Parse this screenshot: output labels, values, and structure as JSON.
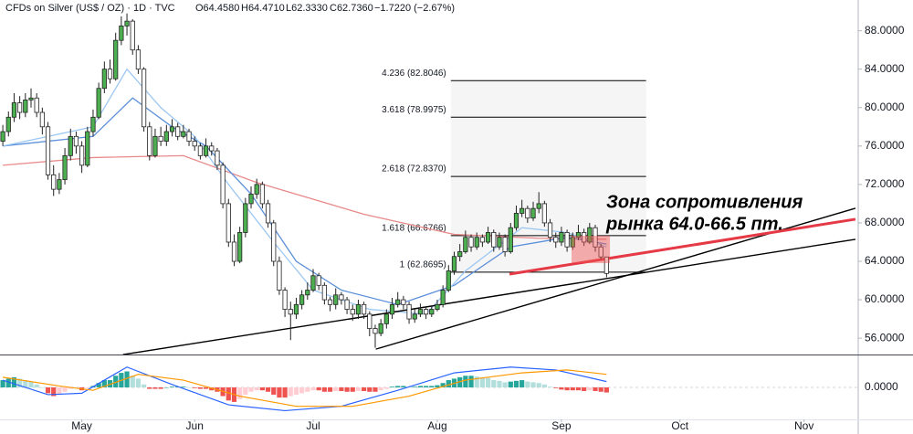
{
  "chart_data": {
    "type": "candlestick",
    "title": "CFDs on Silver (US$ / OZ) · 1D · TVC",
    "quote": [
      "O64.4580",
      "H64.4710",
      "L62.3330",
      "C62.7360",
      "−1.7220 (−2.67%)"
    ],
    "up_color": "#4caf50",
    "down_color": "#ffffff",
    "xlim": [
      -0.5,
      151.6
    ],
    "ylim": [
      54.3,
      91.2
    ],
    "grid": false,
    "xticks": [
      {
        "value": 14,
        "label": "May"
      },
      {
        "value": 34,
        "label": "Jun"
      },
      {
        "value": 55,
        "label": "Jul"
      },
      {
        "value": 77,
        "label": "Aug"
      },
      {
        "value": 99,
        "label": "Sep"
      },
      {
        "value": 120,
        "label": "Oct"
      },
      {
        "value": 142,
        "label": "Nov"
      }
    ],
    "yticks": [
      {
        "value": 56,
        "label": "56.0000"
      },
      {
        "value": 60,
        "label": "60.0000"
      },
      {
        "value": 64,
        "label": "64.0000"
      },
      {
        "value": 68,
        "label": "68.0000"
      },
      {
        "value": 72,
        "label": "72.0000"
      },
      {
        "value": 76,
        "label": "76.0000"
      },
      {
        "value": 80,
        "label": "80.0000"
      },
      {
        "value": 84,
        "label": "84.0000"
      },
      {
        "value": 88,
        "label": "88.0000"
      }
    ],
    "ohlc": [
      [
        76.5,
        78.2,
        76,
        77.5
      ],
      [
        77.5,
        79.6,
        77,
        79
      ],
      [
        79,
        81.5,
        78.5,
        80.5
      ],
      [
        80.5,
        81.2,
        78.8,
        79.5
      ],
      [
        79.5,
        81.5,
        79,
        80.8
      ],
      [
        80.8,
        82,
        80,
        81
      ],
      [
        81,
        81.5,
        79,
        79.5
      ],
      [
        79.5,
        80,
        77.2,
        78
      ],
      [
        78,
        78.5,
        72.5,
        73
      ],
      [
        73,
        74,
        70.8,
        71.5
      ],
      [
        71.5,
        73.2,
        71,
        72.5
      ],
      [
        72.5,
        75.8,
        72,
        75
      ],
      [
        75,
        77.8,
        74.5,
        77
      ],
      [
        77,
        77.5,
        75.2,
        76
      ],
      [
        76,
        76.5,
        73.2,
        74
      ],
      [
        74,
        78,
        73.8,
        77.5
      ],
      [
        77.5,
        79.8,
        77,
        79
      ],
      [
        79,
        82.6,
        78.8,
        82
      ],
      [
        82,
        84.8,
        81.5,
        84
      ],
      [
        84,
        85,
        82.5,
        83
      ],
      [
        83,
        87.8,
        82.8,
        87
      ],
      [
        87,
        89.5,
        86.5,
        88.5
      ],
      [
        88.5,
        89.8,
        87.5,
        89
      ],
      [
        89,
        89.2,
        85.5,
        86
      ],
      [
        86,
        86.5,
        83.5,
        84
      ],
      [
        84,
        84.2,
        77.5,
        78
      ],
      [
        78,
        78.5,
        74.5,
        75
      ],
      [
        75,
        77.8,
        74.8,
        77
      ],
      [
        77,
        78,
        76,
        76.5
      ],
      [
        76.5,
        78.2,
        76,
        77.5
      ],
      [
        77.5,
        78.8,
        77,
        78
      ],
      [
        78,
        78.4,
        76.6,
        77
      ],
      [
        77,
        78.2,
        76.8,
        77.5
      ],
      [
        77.5,
        77.8,
        76,
        76.5
      ],
      [
        76.5,
        77,
        75.5,
        76
      ],
      [
        76,
        76.3,
        74.6,
        75
      ],
      [
        75,
        76.8,
        74.8,
        76
      ],
      [
        76,
        76.4,
        75,
        75.5
      ],
      [
        75.5,
        75.8,
        73.5,
        74
      ],
      [
        74,
        74.3,
        69.5,
        70
      ],
      [
        70,
        70.5,
        65.5,
        66
      ],
      [
        66,
        66.8,
        63.5,
        64
      ],
      [
        64,
        67.6,
        63.8,
        67
      ],
      [
        67,
        70.6,
        66.5,
        70
      ],
      [
        70,
        71.8,
        69.5,
        71
      ],
      [
        71,
        72.6,
        70.5,
        72
      ],
      [
        72,
        72.3,
        69.5,
        70
      ],
      [
        70,
        70.4,
        67.5,
        68
      ],
      [
        68,
        68.3,
        63.5,
        64
      ],
      [
        64,
        64.5,
        60.5,
        61
      ],
      [
        61,
        61.3,
        58.2,
        59
      ],
      [
        59,
        59.8,
        55.8,
        58.5
      ],
      [
        58.5,
        60.2,
        58,
        59.5
      ],
      [
        59.5,
        61,
        59,
        60.5
      ],
      [
        60.5,
        61.8,
        60,
        61
      ],
      [
        61,
        63.2,
        60.8,
        62.5
      ],
      [
        62.5,
        62.8,
        61,
        61.5
      ],
      [
        61.5,
        61.8,
        59.5,
        60
      ],
      [
        60,
        60.3,
        58.8,
        59.5
      ],
      [
        59.5,
        61.2,
        59,
        60.5
      ],
      [
        60.5,
        60.8,
        59.5,
        60
      ],
      [
        60,
        60.3,
        58.5,
        59
      ],
      [
        59,
        59.5,
        57.8,
        58.5
      ],
      [
        58.5,
        60,
        58,
        59.5
      ],
      [
        59.5,
        59.8,
        58,
        58.5
      ],
      [
        58.5,
        58.8,
        56.2,
        57
      ],
      [
        57,
        57.4,
        55,
        56.5
      ],
      [
        56.5,
        58,
        56.2,
        57.5
      ],
      [
        57.5,
        59,
        57,
        58.5
      ],
      [
        58.5,
        60.2,
        58,
        59.5
      ],
      [
        59.5,
        60.8,
        59.2,
        60
      ],
      [
        60,
        60.4,
        59,
        59.5
      ],
      [
        59.5,
        59.8,
        57.5,
        58
      ],
      [
        58,
        59,
        57.6,
        58.5
      ],
      [
        58.5,
        59.6,
        58.2,
        59
      ],
      [
        59,
        59.3,
        58,
        58.5
      ],
      [
        58.5,
        59.4,
        58.2,
        59
      ],
      [
        59,
        60,
        58.8,
        59.5
      ],
      [
        59.5,
        61.5,
        59.2,
        61
      ],
      [
        61,
        63.6,
        60.8,
        63
      ],
      [
        63,
        65,
        62.6,
        64.5
      ],
      [
        64.5,
        65.8,
        64,
        65
      ],
      [
        65,
        67.2,
        64.8,
        66.5
      ],
      [
        66.5,
        66.8,
        65,
        65.5
      ],
      [
        65.5,
        67,
        65.2,
        66.5
      ],
      [
        66.5,
        66.8,
        65.5,
        66
      ],
      [
        66,
        67.6,
        65.8,
        67
      ],
      [
        67,
        67.3,
        65,
        65.5
      ],
      [
        65.5,
        67,
        65.2,
        66.5
      ],
      [
        66.5,
        66.8,
        64.5,
        65
      ],
      [
        65,
        68,
        64.8,
        67.5
      ],
      [
        67.5,
        69.8,
        67.2,
        69
      ],
      [
        69,
        70.4,
        68.6,
        69.5
      ],
      [
        69.5,
        69.8,
        68,
        68.5
      ],
      [
        68.5,
        70.2,
        68.2,
        69.5
      ],
      [
        69.5,
        71.2,
        69,
        70
      ],
      [
        70,
        70.3,
        67.6,
        68
      ],
      [
        68,
        68.4,
        66,
        66.5
      ],
      [
        66.5,
        67,
        65.4,
        66
      ],
      [
        66,
        67.6,
        65.6,
        67
      ],
      [
        67,
        67.3,
        65,
        65.5
      ],
      [
        65.5,
        67,
        65.2,
        66.5
      ],
      [
        66.5,
        67.8,
        66.2,
        67
      ],
      [
        67,
        67.4,
        65.6,
        66
      ],
      [
        66,
        68,
        65.8,
        67.5
      ],
      [
        67.5,
        67.8,
        65,
        65.5
      ],
      [
        65.5,
        65.8,
        64.2,
        64.458
      ],
      [
        64.458,
        64.471,
        62.333,
        62.736
      ]
    ],
    "series": [
      {
        "color": "#e88a8a",
        "x": [
          0,
          16,
          32,
          45,
          64,
          80,
          95,
          107
        ],
        "values": [
          74,
          74.8,
          75,
          72.2,
          68.9,
          66.8,
          66.4,
          66.3
        ]
      },
      {
        "color": "#5b8fd9",
        "x": [
          0,
          16,
          23,
          30,
          36,
          44,
          52,
          60,
          70,
          80,
          90,
          100,
          107
        ],
        "values": [
          76,
          77,
          81,
          78,
          76,
          71,
          64,
          61,
          59.5,
          61.5,
          65.5,
          66.5,
          65.8
        ]
      },
      {
        "color": "#9cc7f2",
        "x": [
          0,
          16,
          22,
          28,
          34,
          40,
          48,
          55,
          65,
          75,
          82,
          92,
          100,
          107
        ],
        "values": [
          76,
          78,
          84,
          80,
          77,
          72,
          66,
          61,
          59,
          58.5,
          63,
          67.5,
          67,
          65.5
        ]
      }
    ],
    "fib_x": [
      79.4,
      114
    ],
    "fib_levels": [
      {
        "value": 62.8695,
        "label": "1 (62.8695)"
      },
      {
        "value": 66.6766,
        "label": "1.618 (66.6766)"
      },
      {
        "value": 72.837,
        "label": "2.618 (72.8370)"
      },
      {
        "value": 78.9975,
        "label": "3.618 (78.9975)"
      },
      {
        "value": 82.8046,
        "label": "4.236 (82.8046)"
      }
    ],
    "trend_lines": [
      {
        "color": "#000000",
        "x": [
          21.3,
          151.1
        ],
        "y": [
          54.29,
          66.29
        ]
      },
      {
        "color": "#000000",
        "x": [
          66.1,
          151.1
        ],
        "y": [
          54.86,
          69.52
        ]
      },
      {
        "color": "#e53946",
        "x": [
          89.8,
          151.1
        ],
        "y": [
          62.67,
          68.38
        ]
      }
    ],
    "zone": {
      "color": "#ef5350",
      "x": [
        100.8,
        107.6
      ],
      "y": [
        63.81,
        66.67
      ]
    },
    "annotation": [
      "Зона сопротивления",
      "рынка 64.0-66.5 пт."
    ],
    "macd": {
      "ylim": [
        -2.2,
        2.2
      ],
      "yticks": [
        {
          "value": 0,
          "label": "0.0000"
        }
      ],
      "hist_colors": [
        "#26a69a",
        "#b2dfdb",
        "#ef5350",
        "#ffcdd2"
      ],
      "histogram": [
        0.5,
        0.6,
        0.7,
        0.6,
        0.5,
        0.4,
        0.2,
        0,
        -0.4,
        -0.6,
        -0.5,
        -0.3,
        -0.1,
        -0.05,
        -0.2,
        -0.05,
        0.1,
        0.3,
        0.5,
        0.5,
        0.8,
        1.0,
        1.1,
        0.8,
        0.6,
        0.2,
        -0.1,
        -0.1,
        -0.1,
        0,
        0.05,
        0.05,
        0.05,
        0,
        -0.05,
        -0.1,
        -0.1,
        -0.2,
        -0.3,
        -0.6,
        -0.9,
        -1.0,
        -0.8,
        -0.5,
        -0.3,
        -0.2,
        -0.2,
        -0.3,
        -0.5,
        -0.7,
        -0.7,
        -0.6,
        -0.5,
        -0.4,
        -0.3,
        -0.2,
        -0.2,
        -0.3,
        -0.3,
        -0.25,
        -0.25,
        -0.3,
        -0.3,
        -0.25,
        -0.25,
        -0.3,
        -0.3,
        -0.2,
        -0.1,
        0.05,
        0.1,
        0.1,
        0.05,
        0.05,
        0.1,
        0.1,
        0.1,
        0.15,
        0.3,
        0.5,
        0.6,
        0.7,
        0.8,
        0.8,
        0.75,
        0.7,
        0.65,
        0.5,
        0.45,
        0.35,
        0.4,
        0.45,
        0.5,
        0.4,
        0.35,
        0.3,
        0.2,
        0.05,
        -0.05,
        -0.15,
        -0.2,
        -0.2,
        -0.2,
        -0.25,
        -0.2,
        -0.25,
        -0.3,
        -0.35
      ],
      "lines": [
        {
          "color": "#2962ff",
          "x": [
            0,
            8,
            14,
            22,
            30,
            40,
            50,
            60,
            70,
            80,
            90,
            98,
            107
          ],
          "values": [
            0.5,
            -0.5,
            -0.4,
            1.4,
            0.2,
            -1.2,
            -1.6,
            -1.3,
            -0.2,
            1.0,
            1.4,
            1.2,
            0.4
          ]
        },
        {
          "color": "#ff9800",
          "x": [
            0,
            10,
            16,
            24,
            32,
            42,
            52,
            62,
            72,
            82,
            92,
            100,
            107
          ],
          "values": [
            0.7,
            0.1,
            -0.2,
            0.9,
            0.5,
            -0.6,
            -1.3,
            -1.3,
            -0.6,
            0.5,
            1.0,
            1.2,
            0.9
          ]
        }
      ]
    }
  }
}
